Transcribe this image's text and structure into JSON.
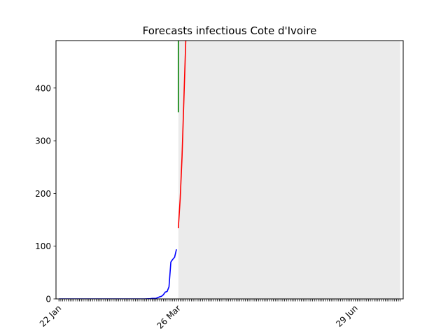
{
  "chart_data": {
    "type": "line",
    "title": "Forecasts infectious Cote d'Ivoire",
    "xlabel": "",
    "ylabel": "",
    "x_start": "2020-01-22",
    "x_end": "2020-07-23",
    "ylim": [
      0,
      490
    ],
    "yticks": [
      0,
      100,
      200,
      300,
      400
    ],
    "xticks": [
      {
        "date": "2020-01-22",
        "label": "22 Jan"
      },
      {
        "date": "2020-03-26",
        "label": "26 Mar"
      },
      {
        "date": "2020-06-29",
        "label": "29 Jun"
      }
    ],
    "forecast_region": {
      "start": "2020-03-26",
      "end": "2020-07-23",
      "color": "#ebebeb"
    },
    "grid": false,
    "legend": "none",
    "series": [
      {
        "color": "#0000ff",
        "points": [
          [
            "2020-01-22",
            0
          ],
          [
            "2020-03-08",
            0
          ],
          [
            "2020-03-11",
            0.5
          ],
          [
            "2020-03-12",
            1
          ],
          [
            "2020-03-14",
            1
          ],
          [
            "2020-03-16",
            4
          ],
          [
            "2020-03-17",
            5
          ],
          [
            "2020-03-18",
            8
          ],
          [
            "2020-03-19",
            13
          ],
          [
            "2020-03-20",
            14
          ],
          [
            "2020-03-21",
            23
          ],
          [
            "2020-03-22",
            70
          ],
          [
            "2020-03-23",
            75
          ],
          [
            "2020-03-24",
            79
          ],
          [
            "2020-03-25",
            94
          ]
        ]
      },
      {
        "color": "#ff0000",
        "points": [
          [
            "2020-03-26",
            134
          ],
          [
            "2020-03-27",
            190
          ],
          [
            "2020-03-28",
            270
          ],
          [
            "2020-03-29",
            380
          ],
          [
            "2020-03-30",
            490
          ]
        ]
      },
      {
        "color": "#008000",
        "points": [
          [
            "2020-03-26",
            354
          ],
          [
            "2020-03-26",
            490
          ]
        ]
      }
    ]
  }
}
